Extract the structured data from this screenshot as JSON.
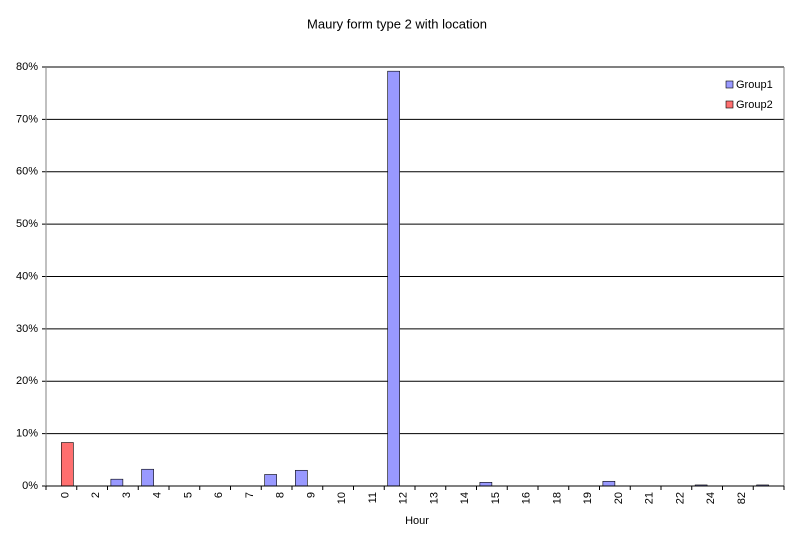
{
  "chart_data": {
    "type": "bar",
    "title": "Maury form type 2 with location",
    "x_label": "Hour",
    "categories": [
      "0",
      "2",
      "3",
      "4",
      "5",
      "6",
      "7",
      "8",
      "9",
      "10",
      "11",
      "12",
      "13",
      "14",
      "15",
      "16",
      "18",
      "19",
      "20",
      "21",
      "22",
      "24",
      "82",
      null
    ],
    "series": [
      {
        "name": "Group1",
        "color": "#9999ff",
        "values": [
          0,
          0,
          1.3,
          3.2,
          0,
          0,
          0,
          2.2,
          3.0,
          0,
          0,
          79.2,
          0,
          0,
          0.7,
          0,
          0,
          0,
          0.9,
          0,
          0,
          0.2,
          0,
          0.2
        ]
      },
      {
        "name": "Group2",
        "color": "#ff6f6f",
        "values": [
          8.3,
          0,
          0,
          0,
          0,
          0,
          0,
          0,
          0,
          0,
          0,
          0,
          0,
          0,
          0,
          0,
          0,
          0,
          0,
          0,
          0,
          0,
          0,
          0
        ]
      }
    ],
    "ylim": [
      0,
      80
    ],
    "yticks": [
      {
        "value": 0,
        "label": "0%"
      },
      {
        "value": 10,
        "label": "10%"
      },
      {
        "value": 20,
        "label": "20%"
      },
      {
        "value": 30,
        "label": "30%"
      },
      {
        "value": 40,
        "label": "40%"
      },
      {
        "value": 50,
        "label": "50%"
      },
      {
        "value": 60,
        "label": "60%"
      },
      {
        "value": 70,
        "label": "70%"
      },
      {
        "value": 80,
        "label": "80%"
      }
    ],
    "grid": true,
    "legend": "top-right"
  }
}
